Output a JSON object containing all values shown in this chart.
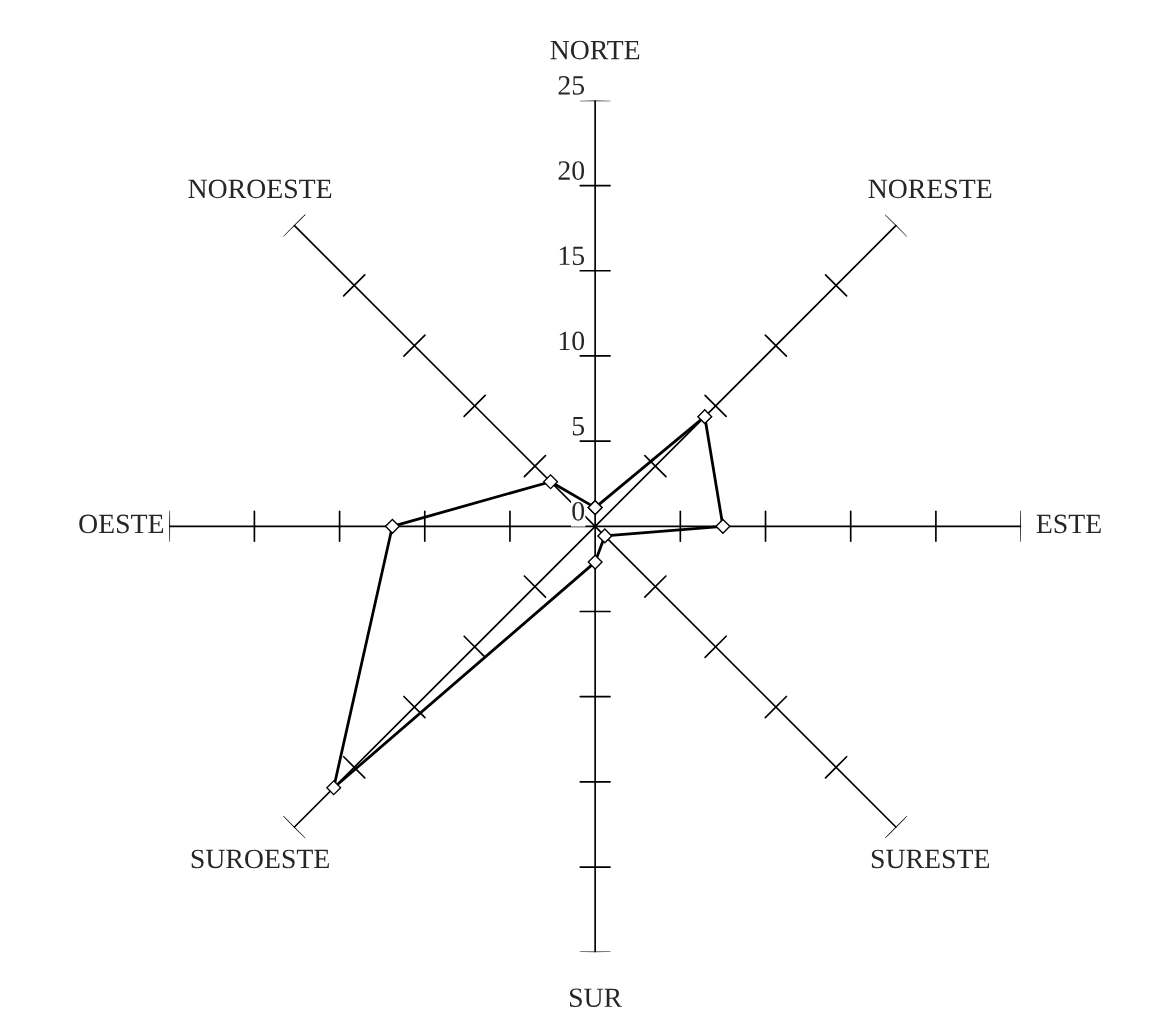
{
  "chart_data": {
    "type": "radar",
    "categories": [
      "NORTE",
      "NORESTE",
      "ESTE",
      "SURESTE",
      "SUR",
      "SUROESTE",
      "OESTE",
      "NOROESTE"
    ],
    "series": [
      {
        "color": "#000000",
        "values": [
          1.1,
          9.1,
          7.5,
          0.8,
          2.1,
          21.7,
          11.9,
          3.7
        ]
      }
    ],
    "ylim": [
      0,
      25
    ],
    "yticks": [
      0,
      5,
      10,
      15,
      20,
      25
    ],
    "marker": "diamond",
    "line_style": "solid",
    "grid": false,
    "legend": false
  }
}
